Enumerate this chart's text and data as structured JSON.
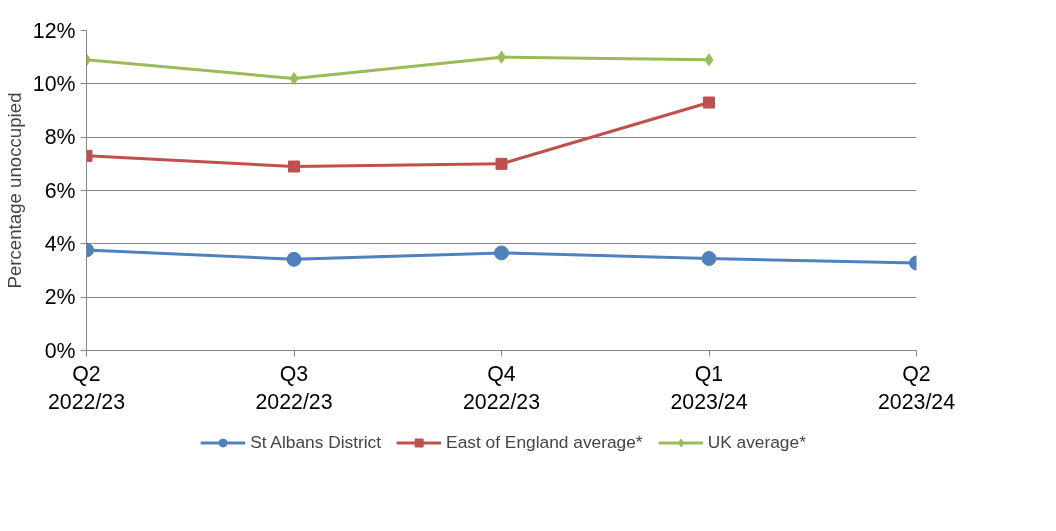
{
  "chart_data": {
    "type": "line",
    "ylabel": "Percentage unoccupied",
    "categories": [
      "Q2\n2022/23",
      "Q3\n2022/23",
      "Q4\n2022/23",
      "Q1\n2023/24",
      "Q2\n2023/24"
    ],
    "series": [
      {
        "name": "St Albans District",
        "color": "#4f81bd",
        "marker": "circle",
        "values": [
          3.77,
          3.42,
          3.66,
          3.45,
          3.28
        ]
      },
      {
        "name": "East of England average*",
        "color": "#c0504d",
        "marker": "square",
        "values": [
          7.3,
          6.9,
          7.0,
          9.3,
          null
        ]
      },
      {
        "name": "UK average*",
        "color": "#9bbb59",
        "marker": "diamond",
        "values": [
          10.9,
          10.2,
          11.0,
          10.9,
          null
        ]
      }
    ],
    "ylim": [
      0,
      12
    ],
    "yticks": [
      {
        "value": 0,
        "label": "0%"
      },
      {
        "value": 2,
        "label": "2%"
      },
      {
        "value": 4,
        "label": "4%"
      },
      {
        "value": 6,
        "label": "6%"
      },
      {
        "value": 8,
        "label": "8%"
      },
      {
        "value": 10,
        "label": "10%"
      },
      {
        "value": 12,
        "label": "12%"
      }
    ],
    "grid": "y",
    "legend": "bottom",
    "line_style": "solid"
  }
}
